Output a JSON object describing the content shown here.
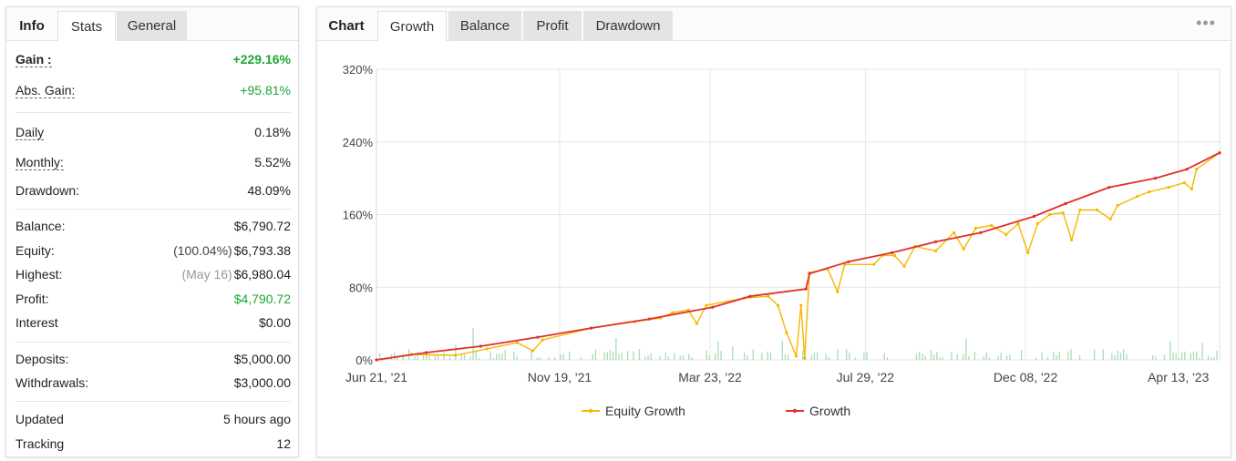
{
  "left_tabs": [
    {
      "label": "Info",
      "state": "first"
    },
    {
      "label": "Stats",
      "state": "active"
    },
    {
      "label": "General",
      "state": "inactive"
    }
  ],
  "stats": {
    "gain": {
      "label": "Gain :",
      "value": "+229.16%"
    },
    "abs_gain": {
      "label": "Abs. Gain:",
      "value": "+95.81%"
    },
    "daily": {
      "label": "Daily",
      "value": "0.18%"
    },
    "monthly": {
      "label": "Monthly:",
      "value": "5.52%"
    },
    "drawdown": {
      "label": "Drawdown:",
      "value": "48.09%"
    },
    "balance": {
      "label": "Balance:",
      "value": "$6,790.72"
    },
    "equity": {
      "label": "Equity:",
      "note": "(100.04%)",
      "value": "$6,793.38"
    },
    "highest": {
      "label": "Highest:",
      "note": "(May 16)",
      "value": "$6,980.04"
    },
    "profit": {
      "label": "Profit:",
      "value": "$4,790.72"
    },
    "interest": {
      "label": "Interest",
      "value": "$0.00"
    },
    "deposits": {
      "label": "Deposits:",
      "value": "$5,000.00"
    },
    "withdrawals": {
      "label": "Withdrawals:",
      "value": "$3,000.00"
    },
    "updated": {
      "label": "Updated",
      "value": "5 hours ago"
    },
    "tracking": {
      "label": "Tracking",
      "value": "12"
    }
  },
  "right_tabs": [
    {
      "label": "Chart",
      "state": "first"
    },
    {
      "label": "Growth",
      "state": "active"
    },
    {
      "label": "Balance",
      "state": "inactive"
    },
    {
      "label": "Profit",
      "state": "inactive"
    },
    {
      "label": "Drawdown",
      "state": "inactive"
    }
  ],
  "menu_icon": "more-dots-icon",
  "colors": {
    "equity": "#f5b800",
    "growth": "#e0302b",
    "volume": "#a9dcb4",
    "positive": "#1ea534"
  },
  "chart_data": {
    "type": "line",
    "y_ticks": [
      "320%",
      "240%",
      "160%",
      "80%",
      "0%"
    ],
    "x_ticks": [
      "Jun 21, '21",
      "Nov 19, '21",
      "Mar 23, '22",
      "Jul 29, '22",
      "Dec 08, '22",
      "Apr 13, '23"
    ],
    "x_range": [
      "2021-06-21",
      "2023-05-17"
    ],
    "ylim": [
      0,
      320
    ],
    "grid": true,
    "legend_position": "bottom",
    "series": [
      {
        "name": "Equity Growth",
        "color": "#f5b800",
        "points": [
          [
            "2021-06-21",
            0
          ],
          [
            "2021-07-20",
            6
          ],
          [
            "2021-08-25",
            5
          ],
          [
            "2021-09-20",
            12
          ],
          [
            "2021-10-15",
            19
          ],
          [
            "2021-10-28",
            10
          ],
          [
            "2021-11-05",
            22
          ],
          [
            "2021-12-15",
            35
          ],
          [
            "2022-01-20",
            42
          ],
          [
            "2022-02-10",
            46
          ],
          [
            "2022-02-20",
            52
          ],
          [
            "2022-03-05",
            55
          ],
          [
            "2022-03-12",
            40
          ],
          [
            "2022-03-20",
            60
          ],
          [
            "2022-04-20",
            68
          ],
          [
            "2022-05-10",
            70
          ],
          [
            "2022-05-18",
            60
          ],
          [
            "2022-05-25",
            30
          ],
          [
            "2022-06-02",
            4
          ],
          [
            "2022-06-06",
            60
          ],
          [
            "2022-06-09",
            2
          ],
          [
            "2022-06-13",
            96
          ],
          [
            "2022-06-28",
            100
          ],
          [
            "2022-07-06",
            75
          ],
          [
            "2022-07-12",
            105
          ],
          [
            "2022-08-05",
            105
          ],
          [
            "2022-08-12",
            115
          ],
          [
            "2022-08-22",
            115
          ],
          [
            "2022-08-30",
            103
          ],
          [
            "2022-09-08",
            125
          ],
          [
            "2022-09-25",
            120
          ],
          [
            "2022-10-10",
            140
          ],
          [
            "2022-10-18",
            122
          ],
          [
            "2022-10-28",
            145
          ],
          [
            "2022-11-10",
            148
          ],
          [
            "2022-11-22",
            138
          ],
          [
            "2022-12-02",
            150
          ],
          [
            "2022-12-10",
            118
          ],
          [
            "2022-12-18",
            150
          ],
          [
            "2022-12-28",
            160
          ],
          [
            "2023-01-08",
            162
          ],
          [
            "2023-01-15",
            132
          ],
          [
            "2023-01-22",
            165
          ],
          [
            "2023-02-05",
            165
          ],
          [
            "2023-02-16",
            155
          ],
          [
            "2023-02-22",
            170
          ],
          [
            "2023-03-10",
            180
          ],
          [
            "2023-03-20",
            185
          ],
          [
            "2023-04-05",
            190
          ],
          [
            "2023-04-18",
            195
          ],
          [
            "2023-04-24",
            188
          ],
          [
            "2023-04-28",
            210
          ],
          [
            "2023-05-17",
            228
          ]
        ]
      },
      {
        "name": "Growth",
        "color": "#e0302b",
        "points": [
          [
            "2021-06-21",
            0
          ],
          [
            "2021-08-01",
            8
          ],
          [
            "2021-09-15",
            15
          ],
          [
            "2021-11-01",
            25
          ],
          [
            "2021-12-15",
            35
          ],
          [
            "2022-02-01",
            45
          ],
          [
            "2022-03-25",
            58
          ],
          [
            "2022-04-25",
            70
          ],
          [
            "2022-06-10",
            78
          ],
          [
            "2022-06-13",
            95
          ],
          [
            "2022-07-15",
            108
          ],
          [
            "2022-08-20",
            118
          ],
          [
            "2022-09-25",
            130
          ],
          [
            "2022-11-01",
            140
          ],
          [
            "2022-12-15",
            158
          ],
          [
            "2023-01-10",
            172
          ],
          [
            "2023-02-15",
            190
          ],
          [
            "2023-03-25",
            200
          ],
          [
            "2023-04-20",
            210
          ],
          [
            "2023-05-17",
            228
          ]
        ]
      }
    ]
  }
}
